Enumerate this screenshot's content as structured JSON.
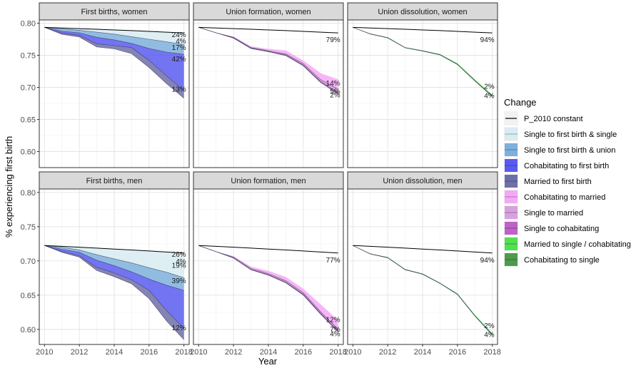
{
  "chart_data": {
    "type": "area",
    "xlabel": "Year",
    "ylabel": "% experiencing first birth",
    "x_ticks": [
      2010,
      2012,
      2014,
      2016,
      2018
    ],
    "x_range": [
      2009.7,
      2018.3
    ],
    "years": [
      2010,
      2011,
      2012,
      2013,
      2014,
      2015,
      2016,
      2017,
      2018
    ],
    "grid": true,
    "legend_position": "right",
    "legend": {
      "title": "Change",
      "entries": [
        {
          "label": "P_2010 constant",
          "kind": "line",
          "color": "#000000"
        },
        {
          "label": "Single to first birth & single",
          "kind": "fill",
          "color": "#d8ecf2"
        },
        {
          "label": "Single to first birth & union",
          "kind": "fill",
          "color": "#7eb0dc"
        },
        {
          "label": "Cohabitating to first birth",
          "kind": "fill",
          "color": "#5a5cf0"
        },
        {
          "label": "Married to first birth",
          "kind": "fill",
          "color": "#6e6fa8"
        },
        {
          "label": "Cohabitating to married",
          "kind": "fill",
          "color": "#f6a8f6"
        },
        {
          "label": "Single to married",
          "kind": "fill",
          "color": "#d9a0e0"
        },
        {
          "label": "Single to cohabitating",
          "kind": "fill",
          "color": "#c060c8"
        },
        {
          "label": "Married to single / cohabitating",
          "kind": "fill",
          "color": "#50e050"
        },
        {
          "label": "Cohabitating to single",
          "kind": "fill",
          "color": "#4e9a4e"
        }
      ]
    },
    "rows": [
      {
        "ylim": [
          0.575,
          0.805
        ],
        "y_ticks": [
          0.6,
          0.65,
          0.7,
          0.75,
          0.8
        ],
        "y_tick_labels": [
          "0.60",
          "0.65",
          "0.70",
          "0.75",
          "0.80"
        ]
      },
      {
        "ylim": [
          0.578,
          0.805
        ],
        "y_ticks": [
          0.6,
          0.65,
          0.7,
          0.75,
          0.8
        ],
        "y_tick_labels": [
          "0.60",
          "0.65",
          "0.70",
          "0.75",
          "0.80"
        ]
      }
    ],
    "panels": [
      {
        "title": "First births, women",
        "row": 0,
        "col": 0,
        "constant": [
          0.7935,
          0.7925,
          0.7915,
          0.7905,
          0.7895,
          0.7885,
          0.7872,
          0.786,
          0.7848
        ],
        "bands": [
          {
            "series": "Single to first birth & single",
            "upper": [
              0.7935,
              0.7925,
              0.7915,
              0.7905,
              0.7895,
              0.7885,
              0.7872,
              0.786,
              0.7848
            ],
            "lower": [
              0.7935,
              0.791,
              0.789,
              0.786,
              0.783,
              0.779,
              0.775,
              0.771,
              0.7665
            ]
          },
          {
            "series": "Single to first birth & union",
            "upper": [
              0.7935,
              0.791,
              0.789,
              0.786,
              0.783,
              0.779,
              0.775,
              0.771,
              0.7665
            ],
            "lower": [
              0.7935,
              0.7875,
              0.785,
              0.778,
              0.774,
              0.7685,
              0.7605,
              0.755,
              0.7515
            ]
          },
          {
            "series": "Cohabitating to first birth",
            "upper": [
              0.7935,
              0.7875,
              0.785,
              0.778,
              0.774,
              0.7685,
              0.7605,
              0.755,
              0.7515
            ],
            "lower": [
              0.7935,
              0.7845,
              0.781,
              0.768,
              0.765,
              0.762,
              0.742,
              0.718,
              0.695
            ]
          },
          {
            "series": "Married to first birth",
            "upper": [
              0.7935,
              0.7845,
              0.781,
              0.768,
              0.765,
              0.762,
              0.742,
              0.718,
              0.695
            ],
            "lower": [
              0.7935,
              0.7825,
              0.7785,
              0.763,
              0.76,
              0.7525,
              0.731,
              0.706,
              0.683
            ]
          }
        ],
        "labels": [
          {
            "text": "24%",
            "y": 0.7825
          },
          {
            "text": "4%",
            "y": 0.7725
          },
          {
            "text": "17%",
            "y": 0.7625
          },
          {
            "text": "42%",
            "y": 0.7445
          },
          {
            "text": "13%",
            "y": 0.697
          }
        ]
      },
      {
        "title": "Union formation, women",
        "row": 0,
        "col": 1,
        "constant": [
          0.7935,
          0.7925,
          0.7915,
          0.7905,
          0.7895,
          0.7885,
          0.7872,
          0.786,
          0.7848
        ],
        "bands": [
          {
            "series": "Cohabitating to married",
            "upper": [
              0.7935,
              0.785,
              0.779,
              0.764,
              0.76,
              0.7575,
              0.742,
              0.722,
              0.7125
            ],
            "lower": [
              0.7935,
              0.785,
              0.778,
              0.762,
              0.757,
              0.752,
              0.737,
              0.712,
              0.697
            ]
          },
          {
            "series": "Single to married",
            "upper": [
              0.7935,
              0.785,
              0.778,
              0.762,
              0.757,
              0.752,
              0.737,
              0.712,
              0.697
            ],
            "lower": [
              0.7935,
              0.785,
              0.7775,
              0.761,
              0.756,
              0.7505,
              0.735,
              0.709,
              0.692
            ]
          },
          {
            "series": "Single to cohabitating",
            "upper": [
              0.7935,
              0.785,
              0.7775,
              0.761,
              0.756,
              0.7505,
              0.735,
              0.709,
              0.692
            ],
            "lower": [
              0.7935,
              0.785,
              0.7765,
              0.7605,
              0.7555,
              0.7495,
              0.7335,
              0.7075,
              0.6895
            ]
          }
        ],
        "labels": [
          {
            "text": "79%",
            "y": 0.7745
          },
          {
            "text": "14%",
            "y": 0.7065
          },
          {
            "text": "5%",
            "y": 0.694
          },
          {
            "text": "2%",
            "y": 0.6885
          }
        ]
      },
      {
        "title": "Union dissolution, women",
        "row": 0,
        "col": 2,
        "constant": [
          0.7935,
          0.7925,
          0.7915,
          0.7905,
          0.7895,
          0.7885,
          0.7872,
          0.786,
          0.7848
        ],
        "bands": [
          {
            "series": "Married to single / cohabitating",
            "upper": [
              0.7935,
              0.7835,
              0.778,
              0.7625,
              0.7575,
              0.752,
              0.7375,
              0.7125,
              0.6885
            ],
            "lower": [
              0.7935,
              0.7835,
              0.7775,
              0.762,
              0.757,
              0.751,
              0.736,
              0.7105,
              0.6865
            ]
          },
          {
            "series": "Cohabitating to single",
            "upper": [
              0.7935,
              0.7835,
              0.7775,
              0.762,
              0.757,
              0.751,
              0.736,
              0.7105,
              0.6865
            ],
            "lower": [
              0.7935,
              0.783,
              0.777,
              0.7615,
              0.7565,
              0.7505,
              0.7355,
              0.71,
              0.6855
            ]
          }
        ],
        "labels": [
          {
            "text": "94%",
            "y": 0.7745
          },
          {
            "text": "2%",
            "y": 0.7015
          },
          {
            "text": "4%",
            "y": 0.6875
          }
        ]
      },
      {
        "title": "First births, men",
        "row": 1,
        "col": 0,
        "constant": [
          0.7225,
          0.7213,
          0.72,
          0.7187,
          0.7173,
          0.716,
          0.7145,
          0.713,
          0.7115
        ],
        "bands": [
          {
            "series": "Single to first birth & single",
            "upper": [
              0.7225,
              0.7213,
              0.72,
              0.7187,
              0.7173,
              0.716,
              0.7145,
              0.713,
              0.7115
            ],
            "lower": [
              0.7225,
              0.72,
              0.716,
              0.709,
              0.703,
              0.697,
              0.69,
              0.6835,
              0.6755
            ]
          },
          {
            "series": "Single to first birth & union",
            "upper": [
              0.7225,
              0.72,
              0.716,
              0.709,
              0.703,
              0.697,
              0.69,
              0.6835,
              0.6755
            ],
            "lower": [
              0.7225,
              0.717,
              0.7125,
              0.701,
              0.693,
              0.684,
              0.6735,
              0.6645,
              0.657
            ]
          },
          {
            "series": "Cohabitating to first birth",
            "upper": [
              0.7225,
              0.717,
              0.7125,
              0.701,
              0.693,
              0.684,
              0.6735,
              0.6645,
              0.657
            ],
            "lower": [
              0.7225,
              0.714,
              0.7075,
              0.6905,
              0.6825,
              0.6725,
              0.657,
              0.6275,
              0.6015
            ]
          },
          {
            "series": "Married to first birth",
            "upper": [
              0.7225,
              0.714,
              0.7075,
              0.6905,
              0.6825,
              0.6725,
              0.657,
              0.6275,
              0.6015
            ],
            "lower": [
              0.7225,
              0.7125,
              0.7055,
              0.686,
              0.677,
              0.6665,
              0.645,
              0.6125,
              0.585
            ]
          }
        ],
        "labels": [
          {
            "text": "26%",
            "y": 0.7095
          },
          {
            "text": "4%",
            "y": 0.6995
          },
          {
            "text": "19%",
            "y": 0.6935
          },
          {
            "text": "39%",
            "y": 0.671
          },
          {
            "text": "12%",
            "y": 0.6025
          }
        ]
      },
      {
        "title": "Union formation, men",
        "row": 1,
        "col": 1,
        "constant": [
          0.7225,
          0.7213,
          0.72,
          0.7187,
          0.7173,
          0.716,
          0.7145,
          0.713,
          0.7115
        ],
        "bands": [
          {
            "series": "Cohabitating to married",
            "upper": [
              0.7225,
              0.7135,
              0.707,
              0.6915,
              0.6855,
              0.6765,
              0.6595,
              0.6365,
              0.6135
            ],
            "lower": [
              0.7225,
              0.7135,
              0.7055,
              0.689,
              0.6815,
              0.671,
              0.6535,
              0.6255,
              0.6005
            ]
          },
          {
            "series": "Single to married",
            "upper": [
              0.7225,
              0.7135,
              0.7055,
              0.689,
              0.6815,
              0.671,
              0.6535,
              0.6255,
              0.6005
            ],
            "lower": [
              0.7225,
              0.7135,
              0.7045,
              0.6875,
              0.68,
              0.669,
              0.6515,
              0.6235,
              0.598
            ]
          },
          {
            "series": "Single to cohabitating",
            "upper": [
              0.7225,
              0.7135,
              0.7045,
              0.6875,
              0.68,
              0.669,
              0.6515,
              0.6235,
              0.598
            ],
            "lower": [
              0.7225,
              0.7135,
              0.704,
              0.687,
              0.679,
              0.668,
              0.65,
              0.622,
              0.596
            ]
          }
        ],
        "labels": [
          {
            "text": "77%",
            "y": 0.7015
          },
          {
            "text": "12%",
            "y": 0.6145
          },
          {
            "text": "7%",
            "y": 0.6005
          },
          {
            "text": "4%",
            "y": 0.5935
          }
        ]
      },
      {
        "title": "Union dissolution, men",
        "row": 1,
        "col": 2,
        "constant": [
          0.7225,
          0.7213,
          0.72,
          0.7187,
          0.7173,
          0.716,
          0.7145,
          0.713,
          0.7115
        ],
        "bands": [
          {
            "series": "Married to single / cohabitating",
            "upper": [
              0.7225,
              0.7105,
              0.7055,
              0.688,
              0.6815,
              0.668,
              0.6525,
              0.6215,
              0.5945
            ],
            "lower": [
              0.7225,
              0.7105,
              0.705,
              0.6875,
              0.681,
              0.6675,
              0.6515,
              0.62,
              0.5925
            ]
          },
          {
            "series": "Cohabitating to single",
            "upper": [
              0.7225,
              0.7105,
              0.705,
              0.6875,
              0.681,
              0.6675,
              0.6515,
              0.62,
              0.5925
            ],
            "lower": [
              0.7225,
              0.71,
              0.7045,
              0.687,
              0.6805,
              0.667,
              0.651,
              0.6195,
              0.5915
            ]
          }
        ],
        "labels": [
          {
            "text": "94%",
            "y": 0.7015
          },
          {
            "text": "2%",
            "y": 0.6055
          },
          {
            "text": "4%",
            "y": 0.5925
          }
        ]
      }
    ]
  }
}
